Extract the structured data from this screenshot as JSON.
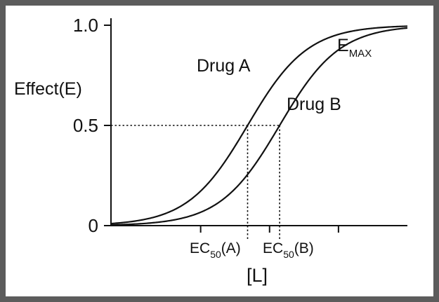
{
  "chart_data": {
    "type": "line",
    "ylabel": "Effect(E)",
    "xlabel": "[L]",
    "y_ticks": [
      {
        "value": 0,
        "label": "0"
      },
      {
        "value": 0.5,
        "label": "0.5"
      },
      {
        "value": 1.0,
        "label": "1.0"
      }
    ],
    "ylim": [
      0,
      1.0
    ],
    "x_scale": "log",
    "x_ticks": [
      {
        "value": 0.1,
        "label": ""
      },
      {
        "value": 1,
        "label": ""
      },
      {
        "value": 10,
        "label": ""
      }
    ],
    "xlim": [
      0.005,
      100
    ],
    "series": [
      {
        "name": "Drug A",
        "ec50": 0.48,
        "hill": 1.0,
        "emax": 1.0
      },
      {
        "name": "Drug B",
        "ec50": 1.4,
        "hill": 1.0,
        "emax": 1.0
      }
    ],
    "annotations": {
      "emax": {
        "base": "E",
        "sub": "MAX"
      },
      "ec50_a": {
        "base": "EC",
        "sub": "50",
        "suffix": "(A)"
      },
      "ec50_b": {
        "base": "EC",
        "sub": "50",
        "suffix": "(B)"
      },
      "half_effect": 0.5
    },
    "grid": false,
    "line_color": "#111111"
  }
}
